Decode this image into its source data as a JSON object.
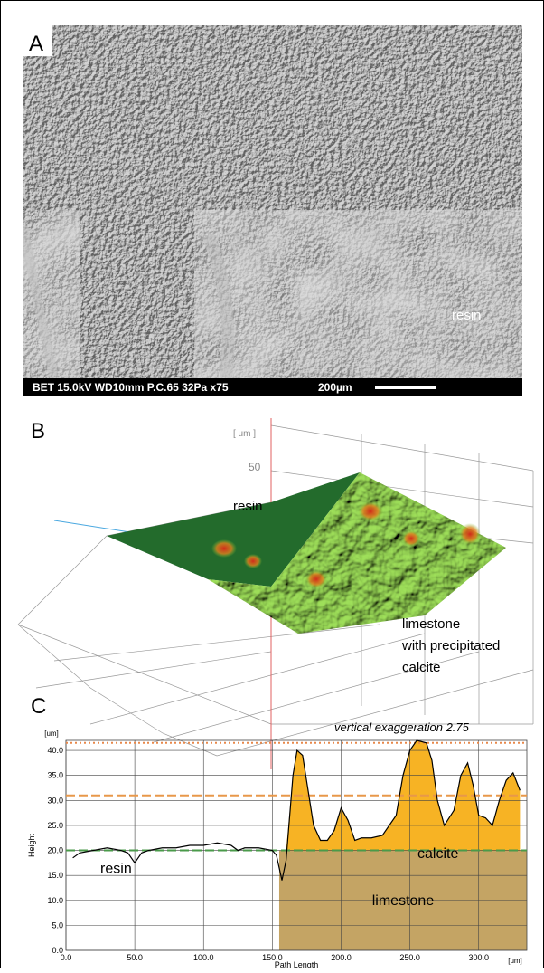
{
  "panels": {
    "a": {
      "label": "A",
      "annotation": "resin",
      "info": "BET  15.0kV  WD10mm P.C.65  32Pa   x75",
      "scale": "200µm"
    },
    "b": {
      "label": "B",
      "unit": "[ um ]",
      "tick": "50",
      "annotation": "resin",
      "description": [
        "limestone",
        "with precipitated",
        "calcite"
      ]
    },
    "c": {
      "label": "C"
    }
  },
  "chart_data": {
    "type": "line",
    "annotation": "vertical exaggeration 2.75",
    "xlabel": "Path Length",
    "ylabel": "Height",
    "xunit": "[um]",
    "yunit": "[um]",
    "x": [
      5,
      10,
      20,
      30,
      40,
      45,
      50,
      55,
      60,
      70,
      80,
      90,
      100,
      110,
      120,
      125,
      130,
      140,
      150,
      153,
      157,
      160,
      165,
      168,
      172,
      176,
      180,
      185,
      190,
      195,
      200,
      205,
      210,
      215,
      222,
      230,
      240,
      245,
      250,
      255,
      262,
      266,
      270,
      275,
      282,
      287,
      292,
      296,
      300,
      305,
      310,
      315,
      320,
      325,
      330
    ],
    "values": [
      18.5,
      19.5,
      20,
      20.5,
      20,
      19.5,
      17.5,
      19.5,
      20,
      20.5,
      20.5,
      21,
      21,
      21.5,
      21,
      20,
      20.5,
      20.5,
      20,
      19,
      14,
      18,
      35,
      40,
      39,
      32,
      25,
      22,
      22,
      24,
      28.5,
      26,
      22,
      22.5,
      22.5,
      23,
      27,
      35,
      40,
      42,
      41.5,
      38,
      30,
      25,
      28,
      35,
      37.5,
      33,
      27,
      26.5,
      25,
      30,
      34,
      35.5,
      32
    ],
    "color": "#000000",
    "xlim": [
      0,
      335
    ],
    "ylim": [
      0,
      42
    ],
    "xticks": [
      {
        "value": 0,
        "label": "0.0"
      },
      {
        "value": 50,
        "label": "50.0"
      },
      {
        "value": 100,
        "label": "100.0"
      },
      {
        "value": 150,
        "label": "150.0"
      },
      {
        "value": 200,
        "label": "200.0"
      },
      {
        "value": 250,
        "label": "250.0"
      },
      {
        "value": 300,
        "label": "300.0"
      }
    ],
    "yticks": [
      {
        "value": 0,
        "label": "0.0"
      },
      {
        "value": 5,
        "label": "5.0"
      },
      {
        "value": 10,
        "label": "10.0"
      },
      {
        "value": 15,
        "label": "15.0"
      },
      {
        "value": 20,
        "label": "20.0"
      },
      {
        "value": 25,
        "label": "25.0"
      },
      {
        "value": 30,
        "label": "30.0"
      },
      {
        "value": 35,
        "label": "35.0"
      },
      {
        "value": 40,
        "label": "40.0"
      }
    ],
    "grid": true,
    "hlines": [
      {
        "value": 41.5,
        "style": "dotted",
        "color": "#e8884a"
      },
      {
        "value": 31,
        "style": "dashed",
        "color": "#e8984a"
      },
      {
        "value": 20,
        "style": "dashed",
        "color": "#4a9a4a"
      }
    ],
    "fill": {
      "label": "calcite",
      "color": "#f7b324",
      "base": 20,
      "from": 157
    },
    "region": {
      "label": "limestone",
      "color": "#c4a464",
      "xlim": [
        155,
        335
      ],
      "ylim": [
        0,
        20
      ]
    },
    "text_labels": [
      {
        "text": "resin",
        "x": 25,
        "y": 15.5
      }
    ]
  }
}
